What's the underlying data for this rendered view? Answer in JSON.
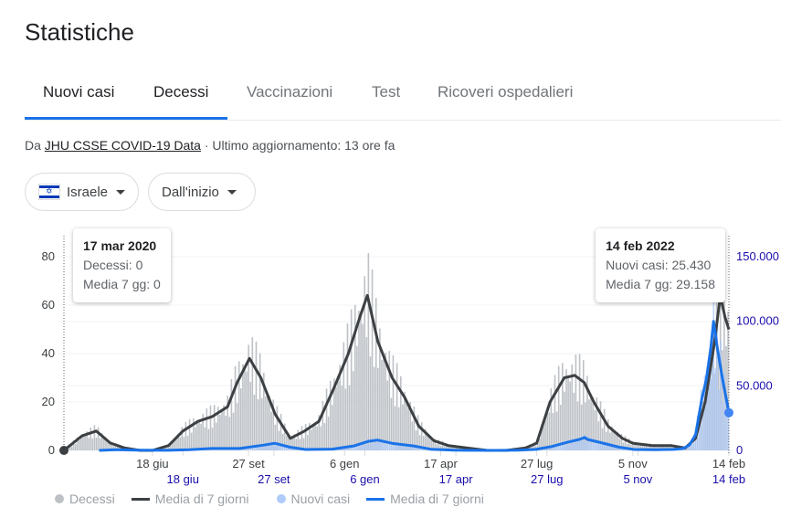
{
  "title": "Statistiche",
  "tabs": [
    {
      "label": "Nuovi casi",
      "selected": true
    },
    {
      "label": "Decessi",
      "selected": true
    },
    {
      "label": "Vaccinazioni"
    },
    {
      "label": "Test"
    },
    {
      "label": "Ricoveri ospedalieri"
    }
  ],
  "source": {
    "prefix": "Da",
    "link": "JHU CSSE COVID-19 Data",
    "suffix": "· Ultimo aggiornamento: 13 ore fa"
  },
  "filters": {
    "country": "Israele",
    "range": "Dall'inizio"
  },
  "colors": {
    "accent": "#1a73e8",
    "deaths_line": "#3c4043",
    "deaths_bars": "#bdc1c6",
    "cases_line": "#1a73e8",
    "cases_bars": "#aecbfa"
  },
  "chart_data": [
    {
      "type": "bar",
      "title": "Decessi",
      "series_names": [
        "Decessi",
        "Media di 7 giorni"
      ],
      "ylim": [
        0,
        80
      ],
      "yticks": [
        "0",
        "20",
        "40",
        "60",
        "80"
      ],
      "xlim": [
        "2020-03-17",
        "2022-02-14"
      ],
      "xticks": [
        {
          "date": "2020-06-18",
          "label": "18 giu"
        },
        {
          "date": "2020-09-27",
          "label": "27 set"
        },
        {
          "date": "2021-01-06",
          "label": "6 gen"
        },
        {
          "date": "2021-04-17",
          "label": "17 apr"
        },
        {
          "date": "2021-07-27",
          "label": "27 lug"
        },
        {
          "date": "2021-11-05",
          "label": "5 nov"
        },
        {
          "date": "2022-02-14",
          "label": "14 feb"
        }
      ],
      "avg": [
        [
          "2020-03-17",
          0
        ],
        [
          "2020-04-05",
          6
        ],
        [
          "2020-04-20",
          8
        ],
        [
          "2020-05-05",
          3
        ],
        [
          "2020-05-20",
          1
        ],
        [
          "2020-06-05",
          0
        ],
        [
          "2020-06-18",
          0
        ],
        [
          "2020-07-05",
          2
        ],
        [
          "2020-07-20",
          8
        ],
        [
          "2020-08-05",
          12
        ],
        [
          "2020-08-20",
          14
        ],
        [
          "2020-09-05",
          18
        ],
        [
          "2020-09-15",
          28
        ],
        [
          "2020-09-28",
          38
        ],
        [
          "2020-10-10",
          30
        ],
        [
          "2020-10-25",
          15
        ],
        [
          "2020-11-10",
          5
        ],
        [
          "2020-11-25",
          8
        ],
        [
          "2020-12-10",
          12
        ],
        [
          "2020-12-25",
          25
        ],
        [
          "2021-01-10",
          40
        ],
        [
          "2021-01-22",
          55
        ],
        [
          "2021-01-30",
          64
        ],
        [
          "2021-02-10",
          45
        ],
        [
          "2021-02-25",
          30
        ],
        [
          "2021-03-10",
          22
        ],
        [
          "2021-03-25",
          10
        ],
        [
          "2021-04-10",
          4
        ],
        [
          "2021-04-25",
          2
        ],
        [
          "2021-05-15",
          1
        ],
        [
          "2021-06-05",
          0
        ],
        [
          "2021-06-25",
          0
        ],
        [
          "2021-07-15",
          1
        ],
        [
          "2021-07-27",
          3
        ],
        [
          "2021-08-10",
          20
        ],
        [
          "2021-08-25",
          30
        ],
        [
          "2021-09-05",
          31
        ],
        [
          "2021-09-15",
          28
        ],
        [
          "2021-09-25",
          20
        ],
        [
          "2021-10-10",
          10
        ],
        [
          "2021-10-25",
          5
        ],
        [
          "2021-11-05",
          3
        ],
        [
          "2021-11-25",
          2
        ],
        [
          "2021-12-15",
          2
        ],
        [
          "2021-12-30",
          1
        ],
        [
          "2022-01-10",
          5
        ],
        [
          "2022-01-20",
          20
        ],
        [
          "2022-01-30",
          45
        ],
        [
          "2022-02-05",
          64
        ],
        [
          "2022-02-10",
          55
        ],
        [
          "2022-02-14",
          50
        ]
      ],
      "tooltip": {
        "date": "17 mar 2020",
        "line1": "Decessi: 0",
        "line2": "Media 7 gg: 0"
      }
    },
    {
      "type": "bar",
      "title": "Nuovi casi",
      "series_names": [
        "Nuovi casi",
        "Media di 7 giorni"
      ],
      "ylim": [
        0,
        150000
      ],
      "yticks": [
        "0",
        "50.000",
        "100.000",
        "150.000"
      ],
      "xlim": [
        "2020-02-07",
        "2022-02-14"
      ],
      "xticks": [
        {
          "date": "2020-06-18",
          "label": "18 giu"
        },
        {
          "date": "2020-09-27",
          "label": "27 set"
        },
        {
          "date": "2021-01-06",
          "label": "6 gen"
        },
        {
          "date": "2021-04-17",
          "label": "17 apr"
        },
        {
          "date": "2021-07-27",
          "label": "27 lug"
        },
        {
          "date": "2021-11-05",
          "label": "5 nov"
        },
        {
          "date": "2022-02-14",
          "label": "14 feb"
        }
      ],
      "avg": [
        [
          "2020-03-17",
          0
        ],
        [
          "2020-04-05",
          500
        ],
        [
          "2020-05-01",
          200
        ],
        [
          "2020-06-01",
          100
        ],
        [
          "2020-06-25",
          600
        ],
        [
          "2020-07-20",
          1500
        ],
        [
          "2020-08-20",
          1500
        ],
        [
          "2020-09-15",
          4000
        ],
        [
          "2020-09-28",
          5500
        ],
        [
          "2020-10-15",
          2500
        ],
        [
          "2020-11-01",
          700
        ],
        [
          "2020-12-01",
          1000
        ],
        [
          "2020-12-25",
          3500
        ],
        [
          "2021-01-10",
          7000
        ],
        [
          "2021-01-20",
          8000
        ],
        [
          "2021-02-05",
          5500
        ],
        [
          "2021-03-01",
          3500
        ],
        [
          "2021-03-20",
          900
        ],
        [
          "2021-04-15",
          150
        ],
        [
          "2021-06-01",
          20
        ],
        [
          "2021-06-25",
          200
        ],
        [
          "2021-07-15",
          800
        ],
        [
          "2021-08-01",
          3000
        ],
        [
          "2021-08-20",
          6500
        ],
        [
          "2021-09-01",
          8500
        ],
        [
          "2021-09-07",
          10000
        ],
        [
          "2021-09-10",
          8500
        ],
        [
          "2021-09-25",
          6000
        ],
        [
          "2021-10-15",
          2500
        ],
        [
          "2021-11-01",
          700
        ],
        [
          "2021-11-25",
          500
        ],
        [
          "2021-12-15",
          800
        ],
        [
          "2021-12-25",
          1500
        ],
        [
          "2022-01-01",
          4000
        ],
        [
          "2022-01-08",
          12000
        ],
        [
          "2022-01-15",
          40000
        ],
        [
          "2022-01-20",
          55000
        ],
        [
          "2022-01-25",
          80000
        ],
        [
          "2022-01-28",
          100000
        ],
        [
          "2022-02-01",
          80000
        ],
        [
          "2022-02-07",
          55000
        ],
        [
          "2022-02-14",
          29158
        ]
      ],
      "tooltip": {
        "date": "14 feb 2022",
        "line1": "Nuovi casi: 25.430",
        "line2": "Media 7 gg: 29.158"
      }
    }
  ]
}
